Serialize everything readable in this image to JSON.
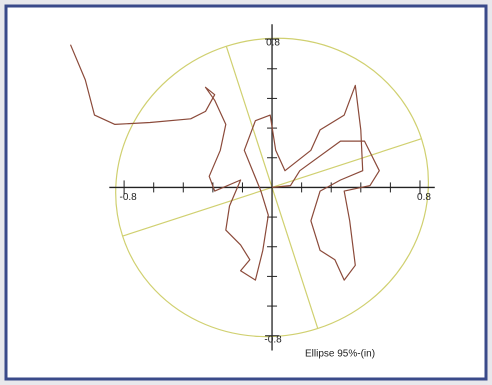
{
  "chart_data": {
    "type": "line",
    "series": [
      {
        "color": "#8b4a3a",
        "x": [
          -1.09,
          -1.01,
          -0.96,
          -0.85,
          -0.66,
          -0.44,
          -0.36,
          -0.31,
          -0.36,
          -0.31,
          -0.25,
          -0.28,
          -0.34,
          -0.31,
          -0.17,
          -0.23,
          -0.25,
          -0.17,
          -0.12,
          -0.17,
          -0.09,
          -0.05,
          -0.02,
          -0.06,
          -0.15,
          -0.09,
          -0.01,
          0.02,
          0.07,
          0.21,
          0.26,
          0.39,
          0.42,
          0.45,
          0.48,
          0.49,
          0.37,
          0.26,
          0.21,
          0.26,
          0.34,
          0.39,
          0.45,
          0.42,
          0.39,
          0.53,
          0.58,
          0.5,
          0.37,
          0.15,
          0.1,
          0
        ],
        "values": [
          0.77,
          0.58,
          0.39,
          0.34,
          0.35,
          0.37,
          0.41,
          0.5,
          0.54,
          0.47,
          0.34,
          0.2,
          0.06,
          -0.02,
          0.04,
          -0.1,
          -0.23,
          -0.31,
          -0.39,
          -0.45,
          -0.5,
          -0.34,
          -0.15,
          -0.02,
          0.2,
          0.36,
          0.39,
          0.2,
          0.09,
          0.2,
          0.31,
          0.39,
          0.47,
          0.55,
          0.31,
          0.09,
          0.04,
          -0.02,
          -0.18,
          -0.34,
          -0.39,
          -0.5,
          -0.42,
          -0.18,
          -0.02,
          0.01,
          0.09,
          0.25,
          0.25,
          0.09,
          0.01,
          0
        ]
      }
    ],
    "ellipse": {
      "rx": 0.85,
      "ry": 0.8,
      "angle": 18,
      "color": "#d0d070",
      "label": "Ellipse 95%-(in)"
    },
    "xlim": [
      -1.39,
      1.13
    ],
    "ylim": [
      -0.85,
      0.93
    ],
    "xticks": [
      -0.8,
      0.8
    ],
    "yticks": [
      -0.8,
      0.8
    ],
    "minor_ticks": [
      -0.64,
      -0.48,
      -0.32,
      -0.16,
      0.16,
      0.32,
      0.48,
      0.64
    ],
    "axis_extent": 0.88
  }
}
